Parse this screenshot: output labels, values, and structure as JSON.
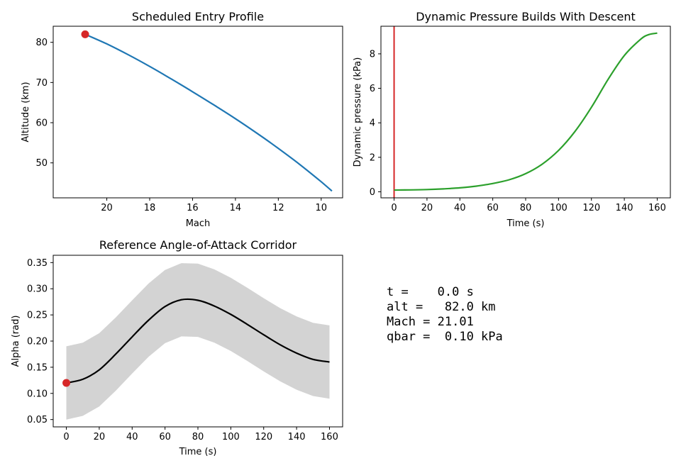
{
  "colors": {
    "alt_line": "#1f77b4",
    "q_line": "#2ca02c",
    "marker": "#d62728",
    "alpha_line": "#000000",
    "corridor": "#d3d3d3"
  },
  "chart_data": [
    {
      "type": "line",
      "title": "Scheduled Entry Profile",
      "xlabel": "Mach",
      "ylabel": "Altitude (km)",
      "x_inverted": true,
      "xlim": [
        22.5,
        9.0
      ],
      "ylim": [
        41.3,
        84.0
      ],
      "xticks": [
        20,
        18,
        16,
        14,
        12,
        10
      ],
      "yticks": [
        50,
        60,
        70,
        80
      ],
      "series": [
        {
          "x": [
            21.01,
            20.0,
            19.0,
            18.0,
            17.0,
            16.0,
            15.0,
            14.0,
            13.0,
            12.0,
            11.0,
            10.0,
            9.5
          ],
          "y": [
            82.0,
            79.6,
            76.9,
            74.0,
            70.9,
            67.7,
            64.4,
            61.0,
            57.4,
            53.6,
            49.6,
            45.3,
            43.0
          ]
        }
      ],
      "marker": {
        "x": 21.01,
        "y": 82.0
      },
      "grid": false
    },
    {
      "type": "line",
      "title": "Dynamic Pressure Builds With Descent",
      "xlabel": "Time (s)",
      "ylabel": "Dynamic pressure (kPa)",
      "xlim": [
        -8,
        168
      ],
      "ylim": [
        -0.35,
        9.6
      ],
      "xticks": [
        0,
        20,
        40,
        60,
        80,
        100,
        120,
        140,
        160
      ],
      "yticks": [
        0,
        2,
        4,
        6,
        8
      ],
      "series": [
        {
          "x": [
            0,
            10,
            20,
            30,
            40,
            50,
            60,
            70,
            80,
            90,
            100,
            110,
            120,
            130,
            140,
            150,
            155,
            160
          ],
          "y": [
            0.1,
            0.11,
            0.13,
            0.17,
            0.23,
            0.33,
            0.48,
            0.7,
            1.05,
            1.6,
            2.4,
            3.5,
            4.9,
            6.5,
            7.9,
            8.85,
            9.12,
            9.2
          ]
        }
      ],
      "vline_x": 0,
      "grid": false
    },
    {
      "type": "area",
      "title": "Reference Angle-of-Attack Corridor",
      "xlabel": "Time (s)",
      "ylabel": "Alpha (rad)",
      "xlim": [
        -8,
        168
      ],
      "ylim": [
        0.036,
        0.364
      ],
      "xticks": [
        0,
        20,
        40,
        60,
        80,
        100,
        120,
        140,
        160
      ],
      "yticks": [
        0.05,
        0.1,
        0.15,
        0.2,
        0.25,
        0.3,
        0.35
      ],
      "series": [
        {
          "x": [
            0,
            10,
            20,
            30,
            40,
            50,
            60,
            70,
            80,
            90,
            100,
            110,
            120,
            130,
            140,
            150,
            160
          ],
          "y": [
            0.12,
            0.127,
            0.145,
            0.175,
            0.208,
            0.24,
            0.266,
            0.279,
            0.278,
            0.267,
            0.251,
            0.232,
            0.212,
            0.193,
            0.177,
            0.165,
            0.16
          ]
        }
      ],
      "band": {
        "upper": [
          0.19,
          0.197,
          0.215,
          0.245,
          0.278,
          0.31,
          0.336,
          0.349,
          0.348,
          0.337,
          0.321,
          0.302,
          0.282,
          0.263,
          0.247,
          0.235,
          0.23
        ],
        "lower": [
          0.05,
          0.057,
          0.075,
          0.105,
          0.138,
          0.17,
          0.196,
          0.209,
          0.208,
          0.197,
          0.181,
          0.162,
          0.142,
          0.123,
          0.107,
          0.095,
          0.09
        ]
      },
      "marker": {
        "x": 0,
        "y": 0.12
      },
      "grid": false
    }
  ],
  "readout": {
    "line1": "t =    0.0 s",
    "line2": "alt =   82.0 km",
    "line3": "Mach = 21.01",
    "line4": "qbar =  0.10 kPa"
  }
}
